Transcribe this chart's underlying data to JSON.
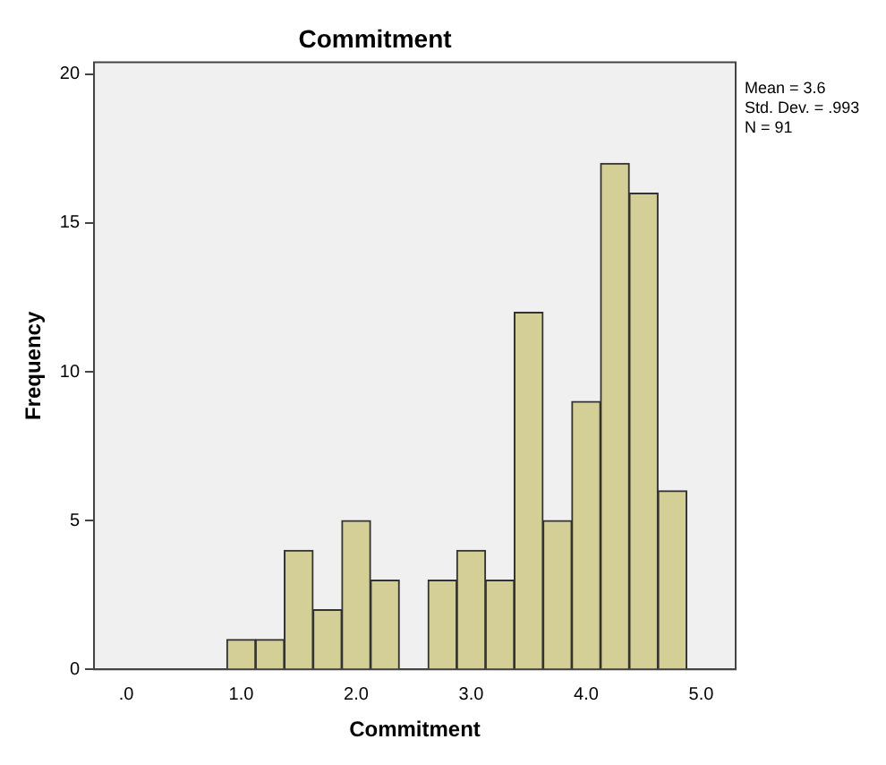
{
  "chart_data": {
    "type": "histogram",
    "title": "Commitment",
    "xlabel": "Commitment",
    "ylabel": "Frequency",
    "bins": [
      0.875,
      1.125,
      1.375,
      1.625,
      1.875,
      2.125,
      2.375,
      2.625,
      2.875,
      3.125,
      3.375,
      3.625,
      3.875,
      4.125,
      4.375,
      4.625,
      4.875
    ],
    "values": [
      1,
      1,
      4,
      2,
      5,
      3,
      0,
      3,
      4,
      3,
      12,
      5,
      9,
      17,
      16,
      6
    ],
    "color": "#d3cf97",
    "xlim": [
      -0.28,
      5.3
    ],
    "xticks": [
      {
        "value": 0,
        "label": ".0"
      },
      {
        "value": 1,
        "label": "1.0"
      },
      {
        "value": 2,
        "label": "2.0"
      },
      {
        "value": 3,
        "label": "3.0"
      },
      {
        "value": 4,
        "label": "4.0"
      },
      {
        "value": 5,
        "label": "5.0"
      }
    ],
    "ylim": [
      0,
      20.4
    ],
    "yticks": [
      0,
      5,
      10,
      15,
      20
    ],
    "grid": false,
    "legend": false,
    "annotations": [
      "Mean = 3.6",
      "Std. Dev. = .993",
      "N = 91"
    ]
  }
}
